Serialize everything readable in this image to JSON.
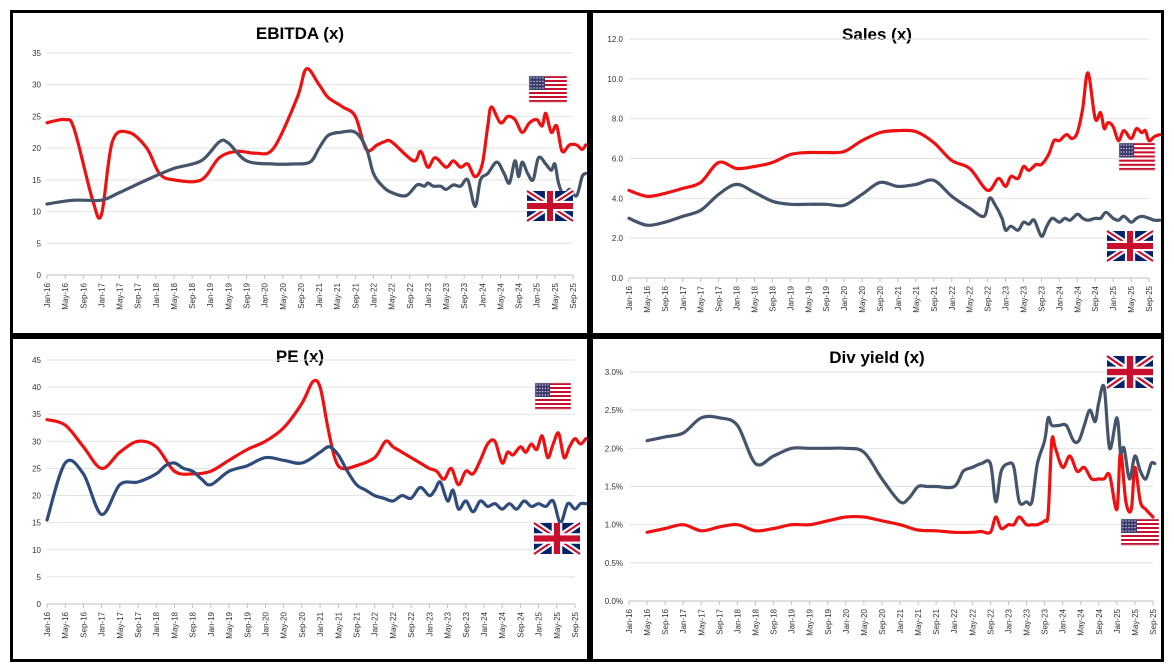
{
  "colors": {
    "us_line": "#ee1111",
    "uk_line": "#44546a",
    "uk_line_pe": "#2f4b7c",
    "flag_red": "#c8102e",
    "flag_blue": "#012169",
    "us_flag_blue": "#3c3b6e"
  },
  "icons": {
    "us": "us-flag-icon",
    "uk": "uk-flag-icon"
  },
  "x_labels": [
    "Jan-16",
    "May-16",
    "Sep-16",
    "Jan-17",
    "May-17",
    "Sep-17",
    "Jan-18",
    "May-18",
    "Sep-18",
    "Jan-19",
    "May-19",
    "Sep-19",
    "Jan-20",
    "May-20",
    "Sep-20",
    "Jan-21",
    "May-21",
    "Sep-21",
    "Jan-22",
    "May-22",
    "Sep-22",
    "Jan-23",
    "May-23",
    "Sep-23",
    "Jan-24",
    "May-24",
    "Sep-24",
    "Jan-25",
    "May-25",
    "Sep-25"
  ],
  "chart_data": [
    {
      "id": "ebitda",
      "type": "line",
      "title": "EBITDA (x)",
      "ylim": [
        0,
        35
      ],
      "yticks": [
        0,
        5,
        10,
        15,
        20,
        25,
        30,
        35
      ],
      "ytick_labels": [
        "0",
        "5",
        "10",
        "15",
        "20",
        "25",
        "30",
        "35"
      ],
      "legend": {
        "us": "top-right",
        "uk": "right"
      },
      "series": [
        {
          "name": "US",
          "color_key": "us_line",
          "x": [
            0,
            1,
            1.5,
            2.5,
            3,
            3.6,
            4.5,
            5.5,
            6.2,
            7,
            8.5,
            9.5,
            10.5,
            11.5,
            12.5,
            13.8,
            14.3,
            15,
            15.5,
            16.3,
            17,
            17.6,
            18.2,
            18.6,
            19,
            20.2,
            20.6,
            21,
            21.4,
            22,
            22.4,
            22.8,
            23.2,
            23.6,
            24,
            24.3,
            24.5,
            25,
            25.4,
            25.8,
            26.2,
            26.6,
            27,
            27.3,
            27.5,
            27.8,
            28.1,
            28.4,
            28.8,
            29.2,
            29.5,
            29.7
          ],
          "values": [
            24,
            24.5,
            23,
            12,
            9.5,
            21,
            22.5,
            20,
            16,
            15,
            15,
            18.5,
            19.5,
            19.2,
            20,
            28,
            32.5,
            30,
            28,
            26.5,
            25,
            19.8,
            20.5,
            21,
            21,
            18,
            19.5,
            17,
            18.5,
            17,
            18,
            17,
            17.5,
            15.5,
            17.5,
            23.5,
            26.5,
            24,
            25,
            24.5,
            22.5,
            24,
            24.5,
            23.5,
            25.5,
            22.5,
            23.5,
            19.5,
            20.5,
            20.5,
            19.8,
            20.5
          ]
        },
        {
          "name": "UK",
          "color_key": "uk_line",
          "x": [
            0,
            1.5,
            3,
            4,
            5.5,
            7,
            8.5,
            9.5,
            10,
            11,
            12.5,
            13.5,
            14.5,
            15,
            15.5,
            16.2,
            17,
            17.6,
            18,
            18.5,
            19,
            19.8,
            20.4,
            20.8,
            21,
            21.3,
            21.7,
            22,
            22.4,
            22.8,
            23.2,
            23.6,
            23.9,
            24.3,
            24.8,
            25.2,
            25.5,
            25.8,
            26,
            26.2,
            26.5,
            26.8,
            27.1,
            27.5,
            27.8,
            28,
            28.2,
            28.5,
            28.8,
            29.2,
            29.5,
            29.7
          ],
          "values": [
            11.2,
            11.8,
            11.8,
            13,
            15,
            16.8,
            18,
            21,
            20.8,
            18,
            17.5,
            17.5,
            17.8,
            20,
            22,
            22.5,
            22.5,
            20,
            16,
            14,
            13,
            12.5,
            14.2,
            14,
            14.5,
            14,
            14,
            13.5,
            14.2,
            14,
            15,
            10.8,
            15,
            16,
            17.8,
            16,
            14.5,
            18,
            15.5,
            17.8,
            16,
            15,
            18.5,
            17.5,
            16.5,
            17.5,
            14.5,
            12.5,
            13.5,
            12.5,
            15.5,
            16
          ]
        }
      ]
    },
    {
      "id": "sales",
      "type": "line",
      "title": "Sales (x)",
      "ylim": [
        0,
        12
      ],
      "yticks": [
        0,
        2,
        4,
        6,
        8,
        10,
        12
      ],
      "ytick_labels": [
        "0.0",
        "2.0",
        "4.0",
        "6.0",
        "8.0",
        "10.0",
        "12.0"
      ],
      "legend": {
        "us": "right",
        "uk": "bottom-right"
      },
      "series": [
        {
          "name": "US",
          "color_key": "us_line",
          "x": [
            0,
            1,
            2,
            3,
            4,
            5,
            6,
            7,
            8,
            9,
            10,
            11,
            12,
            13,
            14,
            15,
            16,
            17,
            18,
            19,
            20,
            20.6,
            21,
            21.3,
            21.7,
            22,
            22.3,
            22.7,
            23,
            23.4,
            23.7,
            24,
            24.4,
            24.7,
            25,
            25.3,
            25.6,
            26,
            26.3,
            26.5,
            26.7,
            27,
            27.3,
            27.6,
            28,
            28.3,
            28.6,
            28.8,
            29,
            29.3,
            29.6
          ],
          "values": [
            4.4,
            4.1,
            4.25,
            4.5,
            4.8,
            5.8,
            5.5,
            5.6,
            5.8,
            6.2,
            6.3,
            6.3,
            6.35,
            6.9,
            7.3,
            7.4,
            7.35,
            6.8,
            5.9,
            5.5,
            4.4,
            5.0,
            4.6,
            5.1,
            5.0,
            5.6,
            5.4,
            5.7,
            5.7,
            6.2,
            6.9,
            6.9,
            7.2,
            7.0,
            7.3,
            8.5,
            10.3,
            8.0,
            8.3,
            7.5,
            7.8,
            7.6,
            6.9,
            7.4,
            7.0,
            7.5,
            7.3,
            7.4,
            6.9,
            7.1,
            7.2
          ]
        },
        {
          "name": "UK",
          "color_key": "uk_line",
          "x": [
            0,
            1,
            2,
            3,
            4,
            5,
            6,
            7,
            8,
            9,
            10,
            11,
            12,
            13,
            14,
            15,
            16,
            17,
            18,
            19,
            19.8,
            20.1,
            20.4,
            20.8,
            21,
            21.3,
            21.7,
            22,
            22.3,
            22.6,
            23,
            23.3,
            23.6,
            24,
            24.3,
            24.6,
            25,
            25.3,
            25.6,
            26,
            26.3,
            26.6,
            27,
            27.3,
            27.6,
            28,
            28.3,
            28.6,
            29,
            29.3,
            29.6
          ],
          "values": [
            3.0,
            2.65,
            2.8,
            3.1,
            3.4,
            4.2,
            4.7,
            4.3,
            3.85,
            3.7,
            3.7,
            3.7,
            3.65,
            4.2,
            4.8,
            4.6,
            4.7,
            4.9,
            4.1,
            3.5,
            3.1,
            4.0,
            3.7,
            3.0,
            2.4,
            2.6,
            2.4,
            2.8,
            2.7,
            2.9,
            2.1,
            2.6,
            3.0,
            2.8,
            3.0,
            2.9,
            3.2,
            3.0,
            2.9,
            3.0,
            3.0,
            3.3,
            3.0,
            2.9,
            3.1,
            2.8,
            3.0,
            3.1,
            3.0,
            2.9,
            2.9
          ]
        }
      ]
    },
    {
      "id": "pe",
      "type": "line",
      "title": "PE (x)",
      "ylim": [
        0,
        45
      ],
      "yticks": [
        0,
        5,
        10,
        15,
        20,
        25,
        30,
        35,
        40,
        45
      ],
      "ytick_labels": [
        "0",
        "5",
        "10",
        "15",
        "20",
        "25",
        "30",
        "35",
        "40",
        "45"
      ],
      "legend": {
        "us": "top-right",
        "uk": "right"
      },
      "series": [
        {
          "name": "US",
          "color_key": "us_line",
          "x": [
            0,
            1,
            2,
            3,
            4,
            5,
            6,
            7,
            8,
            9,
            10,
            11,
            12,
            13,
            14,
            14.6,
            15,
            15.4,
            15.8,
            16.2,
            17,
            18,
            18.6,
            19,
            19.5,
            20,
            20.5,
            21,
            21.4,
            21.8,
            22.2,
            22.6,
            23,
            23.4,
            23.8,
            24.2,
            24.6,
            25,
            25.3,
            25.6,
            26,
            26.3,
            26.6,
            26.9,
            27.2,
            27.5,
            27.8,
            28.1,
            28.4,
            28.7,
            29,
            29.3,
            29.6
          ],
          "values": [
            34,
            33,
            29,
            25,
            28,
            30,
            29,
            24.5,
            24,
            24.5,
            26.5,
            28.5,
            30,
            32.5,
            37,
            41,
            40,
            33,
            27,
            25,
            25.5,
            27,
            30,
            29,
            28,
            27,
            26,
            25,
            24.5,
            23,
            25,
            22,
            24.5,
            24,
            26.5,
            29.5,
            30,
            26,
            28,
            27.5,
            29,
            28,
            29.5,
            28.5,
            31,
            27,
            29.5,
            31.5,
            27,
            29,
            30.5,
            29.5,
            30.5
          ]
        },
        {
          "name": "UK",
          "color_key": "uk_line_pe",
          "x": [
            0,
            1,
            2,
            3,
            4,
            5,
            6,
            6.5,
            7,
            7.5,
            8,
            8.5,
            9,
            10,
            11,
            12,
            13,
            14,
            15,
            15.5,
            16,
            16.5,
            17,
            17.5,
            18,
            18.5,
            19,
            19.5,
            20,
            20.5,
            21,
            21.3,
            21.6,
            22,
            22.3,
            22.6,
            23,
            23.4,
            23.8,
            24.2,
            24.6,
            25,
            25.4,
            25.8,
            26.2,
            26.6,
            27,
            27.4,
            27.8,
            28.2,
            28.6,
            29,
            29.3,
            29.6
          ],
          "values": [
            15.5,
            26,
            24,
            16.5,
            22,
            22.5,
            24,
            25.5,
            26,
            25,
            24.5,
            23,
            22,
            24.5,
            25.5,
            27,
            26.5,
            26,
            28,
            29,
            27.5,
            24.5,
            22,
            21,
            20,
            19.5,
            19,
            20,
            19.5,
            21.5,
            20,
            21,
            22.5,
            19,
            21,
            17.5,
            19,
            17,
            19,
            18,
            18.5,
            17.5,
            18.5,
            17.5,
            19,
            18,
            18.5,
            18,
            19,
            15,
            18.5,
            17.5,
            18.5,
            18.5
          ]
        }
      ]
    },
    {
      "id": "divyield",
      "type": "line",
      "title": "Div yield (x)",
      "ylim": [
        0,
        3.0
      ],
      "yticks": [
        0,
        0.5,
        1.0,
        1.5,
        2.0,
        2.5,
        3.0
      ],
      "ytick_labels": [
        "0.0%",
        "0.5%",
        "1.0%",
        "1.5%",
        "2.0%",
        "2.5%",
        "3.0%"
      ],
      "legend": {
        "uk": "top-right",
        "us": "right"
      },
      "series": [
        {
          "name": "US",
          "color_key": "us_line",
          "x": [
            1,
            2,
            3,
            4,
            5,
            6,
            7,
            8,
            9,
            10,
            11,
            12,
            13,
            14,
            15,
            16,
            17,
            18,
            19,
            19.5,
            20,
            20.3,
            20.6,
            21,
            21.3,
            21.6,
            22,
            22.3,
            22.6,
            23,
            23.2,
            23.4,
            23.6,
            24,
            24.4,
            24.8,
            25.2,
            25.6,
            26,
            26.3,
            26.6,
            27,
            27.2,
            27.5,
            27.8,
            28,
            28.3,
            28.6,
            29
          ],
          "values": [
            0.9,
            0.95,
            1.0,
            0.92,
            0.97,
            1.0,
            0.92,
            0.95,
            1.0,
            1.0,
            1.05,
            1.1,
            1.1,
            1.05,
            1.0,
            0.93,
            0.92,
            0.9,
            0.9,
            0.91,
            0.9,
            1.1,
            0.95,
            1.0,
            1.0,
            1.1,
            1.0,
            1.0,
            1.0,
            1.05,
            1.15,
            2.1,
            2.0,
            1.75,
            1.9,
            1.7,
            1.75,
            1.6,
            1.6,
            1.6,
            1.65,
            1.2,
            1.95,
            1.3,
            1.2,
            1.75,
            1.3,
            1.2,
            1.1
          ]
        },
        {
          "name": "UK",
          "color_key": "uk_line",
          "x": [
            1,
            2,
            3,
            4,
            5,
            6,
            7,
            8,
            9,
            10,
            11,
            12,
            13,
            14,
            15,
            15.5,
            16,
            16.5,
            17,
            18,
            18.5,
            19,
            19.5,
            20,
            20.3,
            20.6,
            21,
            21.3,
            21.6,
            22,
            22.3,
            22.6,
            23,
            23.2,
            23.4,
            23.8,
            24.2,
            24.6,
            24.9,
            25.2,
            25.5,
            25.8,
            26,
            26.3,
            26.6,
            27,
            27.2,
            27.4,
            27.7,
            28,
            28.3,
            28.6,
            28.9,
            29.1
          ],
          "values": [
            2.1,
            2.15,
            2.2,
            2.4,
            2.4,
            2.3,
            1.8,
            1.9,
            2.0,
            2.0,
            2.0,
            2.0,
            1.95,
            1.6,
            1.3,
            1.35,
            1.5,
            1.5,
            1.5,
            1.5,
            1.7,
            1.75,
            1.8,
            1.8,
            1.3,
            1.7,
            1.8,
            1.75,
            1.3,
            1.3,
            1.3,
            1.8,
            2.1,
            2.4,
            2.3,
            2.3,
            2.3,
            2.1,
            2.1,
            2.3,
            2.5,
            2.35,
            2.6,
            2.8,
            2.0,
            2.4,
            1.95,
            2.0,
            1.6,
            1.9,
            1.7,
            1.6,
            1.8,
            1.8
          ]
        }
      ]
    }
  ]
}
